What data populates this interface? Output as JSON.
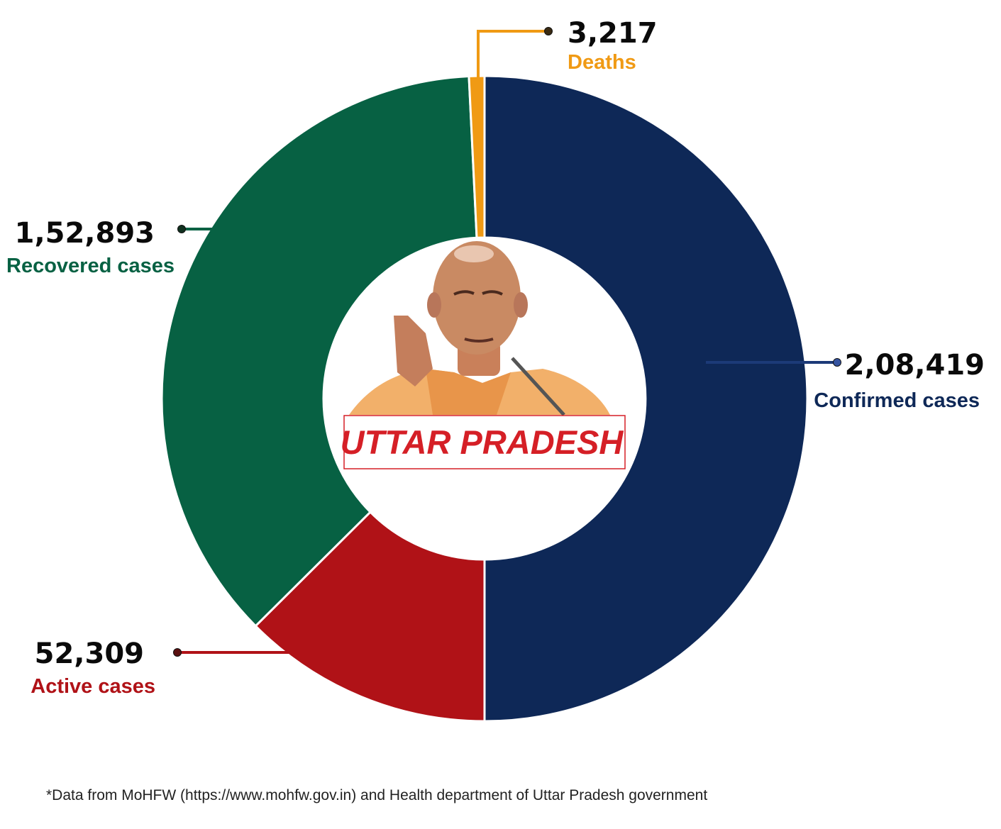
{
  "chart_data": {
    "type": "pie",
    "variant": "donut",
    "total_category": "Confirmed cases",
    "total_value": 208419,
    "slices": [
      {
        "label": "Confirmed cases",
        "value": 208419,
        "value_text": "2,08,419",
        "color": "#0e2857"
      },
      {
        "label": "Active cases",
        "value": 52309,
        "value_text": "52,309",
        "color": "#b01217"
      },
      {
        "label": "Recovered cases",
        "value": 152893,
        "value_text": "1,52,893",
        "color": "#076143"
      },
      {
        "label": "Deaths",
        "value": 3217,
        "value_text": "3,217",
        "color": "#f09a14"
      }
    ],
    "center_label": "UTTAR PRADESH",
    "center_image": "portrait photo of state chief minister"
  },
  "colors": {
    "confirmed": "#0e2857",
    "active": "#b01217",
    "recovered": "#076143",
    "deaths": "#f09a14",
    "center_label": "#d51f26"
  },
  "footnote": "*Data from MoHFW (https://www.mohfw.gov.in) and Health department of Uttar Pradesh government"
}
